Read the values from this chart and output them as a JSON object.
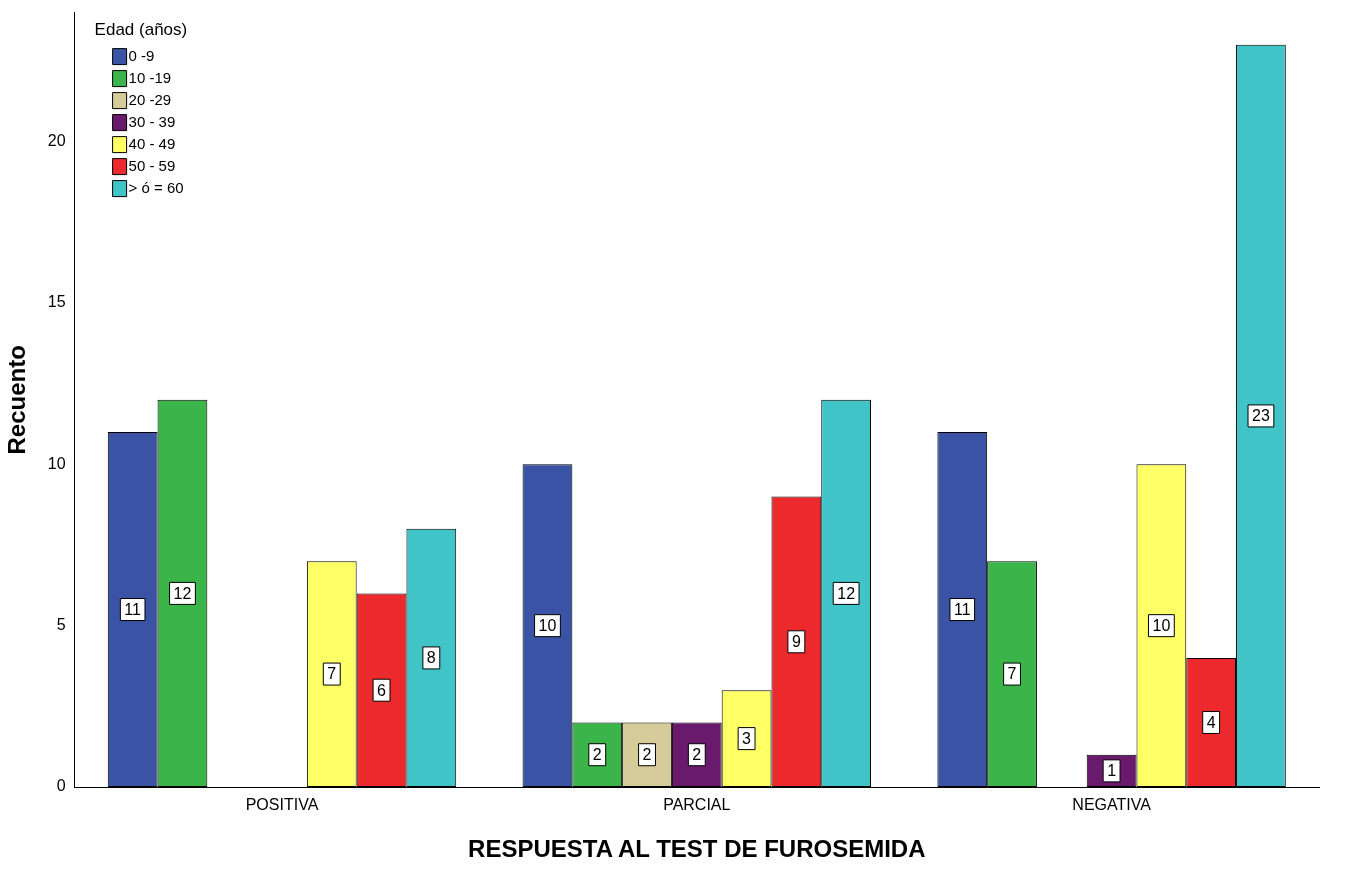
{
  "chart_data": {
    "type": "bar",
    "xlabel": "RESPUESTA AL TEST DE FUROSEMIDA",
    "ylabel": "Recuento",
    "legend_title": "Edad (años)",
    "categories": [
      "POSITIVA",
      "PARCIAL",
      "NEGATIVA"
    ],
    "series": [
      {
        "name": "0 -9",
        "color": "#3a53a4",
        "values": [
          11,
          10,
          11
        ]
      },
      {
        "name": "10 -19",
        "color": "#3bb54a",
        "values": [
          12,
          2,
          7
        ]
      },
      {
        "name": "20 -29",
        "color": "#d6cc9a",
        "values": [
          null,
          2,
          null
        ]
      },
      {
        "name": "30 - 39",
        "color": "#6a1a6d",
        "values": [
          null,
          2,
          1
        ]
      },
      {
        "name": "40 - 49",
        "color": "#ffff66",
        "values": [
          7,
          3,
          10
        ]
      },
      {
        "name": "50 - 59",
        "color": "#ec2a2d",
        "values": [
          6,
          9,
          4
        ]
      },
      {
        "name": "> ó = 60",
        "color": "#40c4c8",
        "values": [
          8,
          12,
          23
        ]
      }
    ],
    "ylim": [
      0,
      24
    ],
    "yticks": [
      0,
      5,
      10,
      15,
      20
    ],
    "grid": false,
    "legend": "top left",
    "data_labels": true
  }
}
